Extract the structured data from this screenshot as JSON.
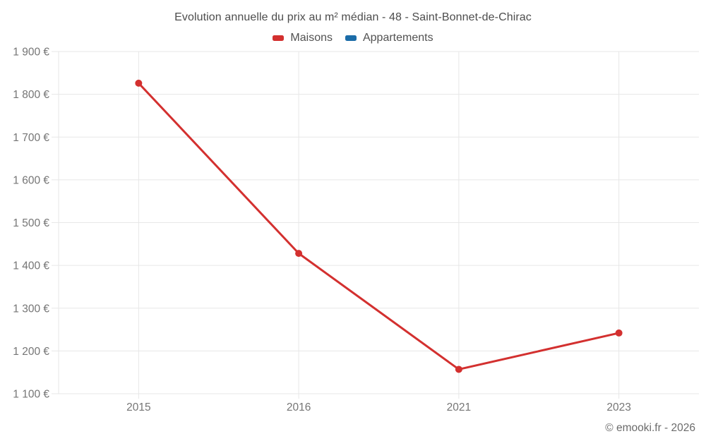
{
  "header": {
    "title": "Evolution annuelle du prix au m² médian - 48 - Saint-Bonnet-de-Chirac"
  },
  "legend": {
    "items": [
      {
        "label": "Maisons",
        "color": "#d3302f"
      },
      {
        "label": "Appartements",
        "color": "#1b6ca8"
      }
    ]
  },
  "footer": {
    "credit": "© emooki.fr - 2026"
  },
  "colors": {
    "maisons": "#d3302f",
    "appartements": "#1b6ca8",
    "gridline": "#e7e7e7",
    "axis_text": "#757575"
  },
  "chart_data": {
    "type": "line",
    "title": "Evolution annuelle du prix au m² médian - 48 - Saint-Bonnet-de-Chirac",
    "categories": [
      "2015",
      "2016",
      "2021",
      "2023"
    ],
    "series": [
      {
        "name": "Maisons",
        "color": "#d3302f",
        "values": [
          1826,
          1428,
          1157,
          1242
        ]
      },
      {
        "name": "Appartements",
        "color": "#1b6ca8",
        "values": []
      }
    ],
    "xlabel": "",
    "ylabel": "",
    "ylim": [
      1100,
      1900
    ],
    "y_step": 100,
    "y_tick_labels": [
      "1 100 €",
      "1 200 €",
      "1 300 €",
      "1 400 €",
      "1 500 €",
      "1 600 €",
      "1 700 €",
      "1 800 €",
      "1 900 €"
    ],
    "grid": true,
    "legend_position": "top",
    "marker": "circle"
  }
}
